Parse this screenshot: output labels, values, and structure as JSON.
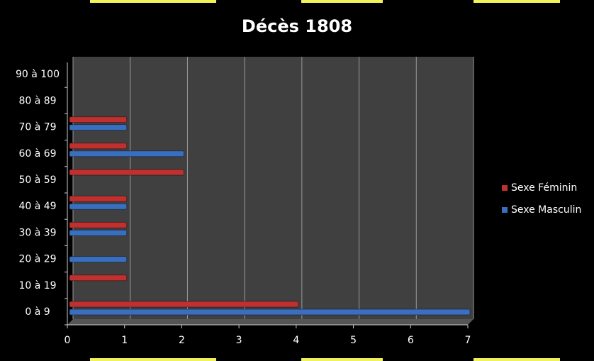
{
  "chart_data": {
    "type": "bar",
    "orientation": "horizontal",
    "title": "Décès 1808",
    "categories": [
      "0 à 9",
      "10 à 19",
      "20 à 29",
      "30 à 39",
      "40 à 49",
      "50 à 59",
      "60 à 69",
      "70 à 79",
      "80 à 89",
      "90 à 100"
    ],
    "series": [
      {
        "name": "Sexe Féminin",
        "color": "#c0302e",
        "values": [
          4,
          1,
          null,
          1,
          1,
          2,
          1,
          1,
          null,
          null
        ]
      },
      {
        "name": "Sexe Masculin",
        "color": "#3a6fc0",
        "values": [
          7,
          null,
          1,
          1,
          1,
          null,
          2,
          1,
          null,
          null
        ]
      }
    ],
    "xlim": [
      0,
      7
    ],
    "xticks": [
      0,
      1,
      2,
      3,
      4,
      5,
      6,
      7
    ],
    "grid": true,
    "legend": "right"
  }
}
